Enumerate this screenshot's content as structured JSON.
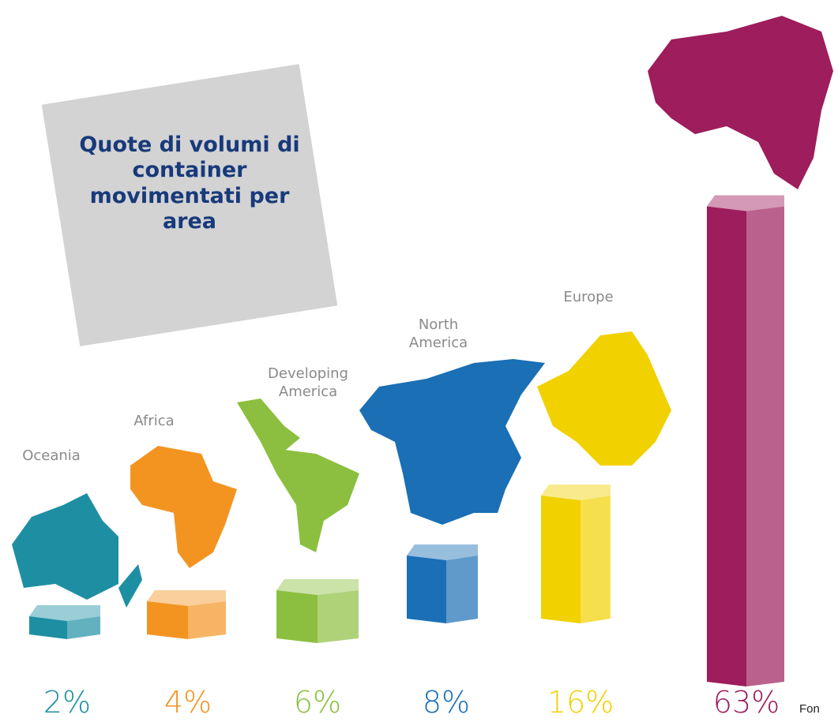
{
  "chart_data": {
    "type": "bar3d",
    "title": "Quote di volumi di container movimentati per area",
    "categories": [
      "Oceania",
      "Africa",
      "Developing America",
      "North America",
      "Europe",
      null
    ],
    "values": [
      2,
      4,
      6,
      8,
      16,
      63
    ],
    "value_labels": [
      "2%",
      "4%",
      "6%",
      "8%",
      "16%",
      "63%"
    ],
    "colors": [
      "#1e8fa3",
      "#f39421",
      "#8cbf3f",
      "#1a6fb5",
      "#f2d100",
      "#9e1d5c"
    ],
    "source": "Fon"
  }
}
